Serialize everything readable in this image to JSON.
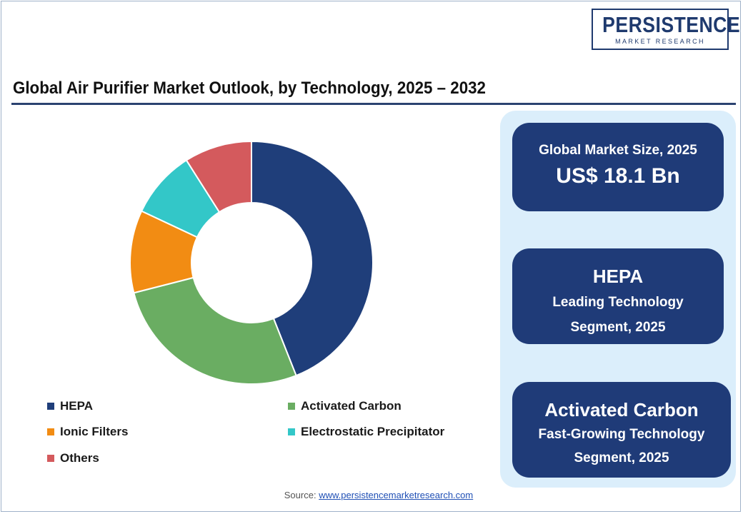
{
  "logo": {
    "brand": "PERSISTENCE",
    "sub": "MARKET RESEARCH"
  },
  "chart_data": {
    "type": "pie",
    "title": "Global Air Purifier Market Outlook, by Technology, 2025 – 2032",
    "donut": true,
    "legend_position": "bottom",
    "categories": [
      "HEPA",
      "Activated Carbon",
      "Ionic Filters",
      "Electrostatic Precipitator",
      "Others"
    ],
    "values": [
      44,
      27,
      11,
      9,
      9
    ],
    "colors": [
      "#1f3e7a",
      "#6aad62",
      "#f28c13",
      "#33c7c8",
      "#d45a5d"
    ]
  },
  "legend": [
    {
      "label": "HEPA",
      "color": "#1f3e7a"
    },
    {
      "label": "Activated Carbon",
      "color": "#6aad62"
    },
    {
      "label": "Ionic Filters",
      "color": "#f28c13"
    },
    {
      "label": "Electrostatic Precipitator",
      "color": "#33c7c8"
    },
    {
      "label": "Others",
      "color": "#d45a5d"
    }
  ],
  "cards": {
    "market_size": {
      "label": "Global Market Size, 2025",
      "value": "US$ 18.1 Bn"
    },
    "leading": {
      "name": "HEPA",
      "line1": "Leading Technology",
      "line2": "Segment, 2025"
    },
    "growing": {
      "name": "Activated Carbon",
      "line1": "Fast-Growing Technology",
      "line2": "Segment, 2025"
    }
  },
  "source": {
    "label": "Source:",
    "link": "www.persistencemarketresearch.com"
  }
}
